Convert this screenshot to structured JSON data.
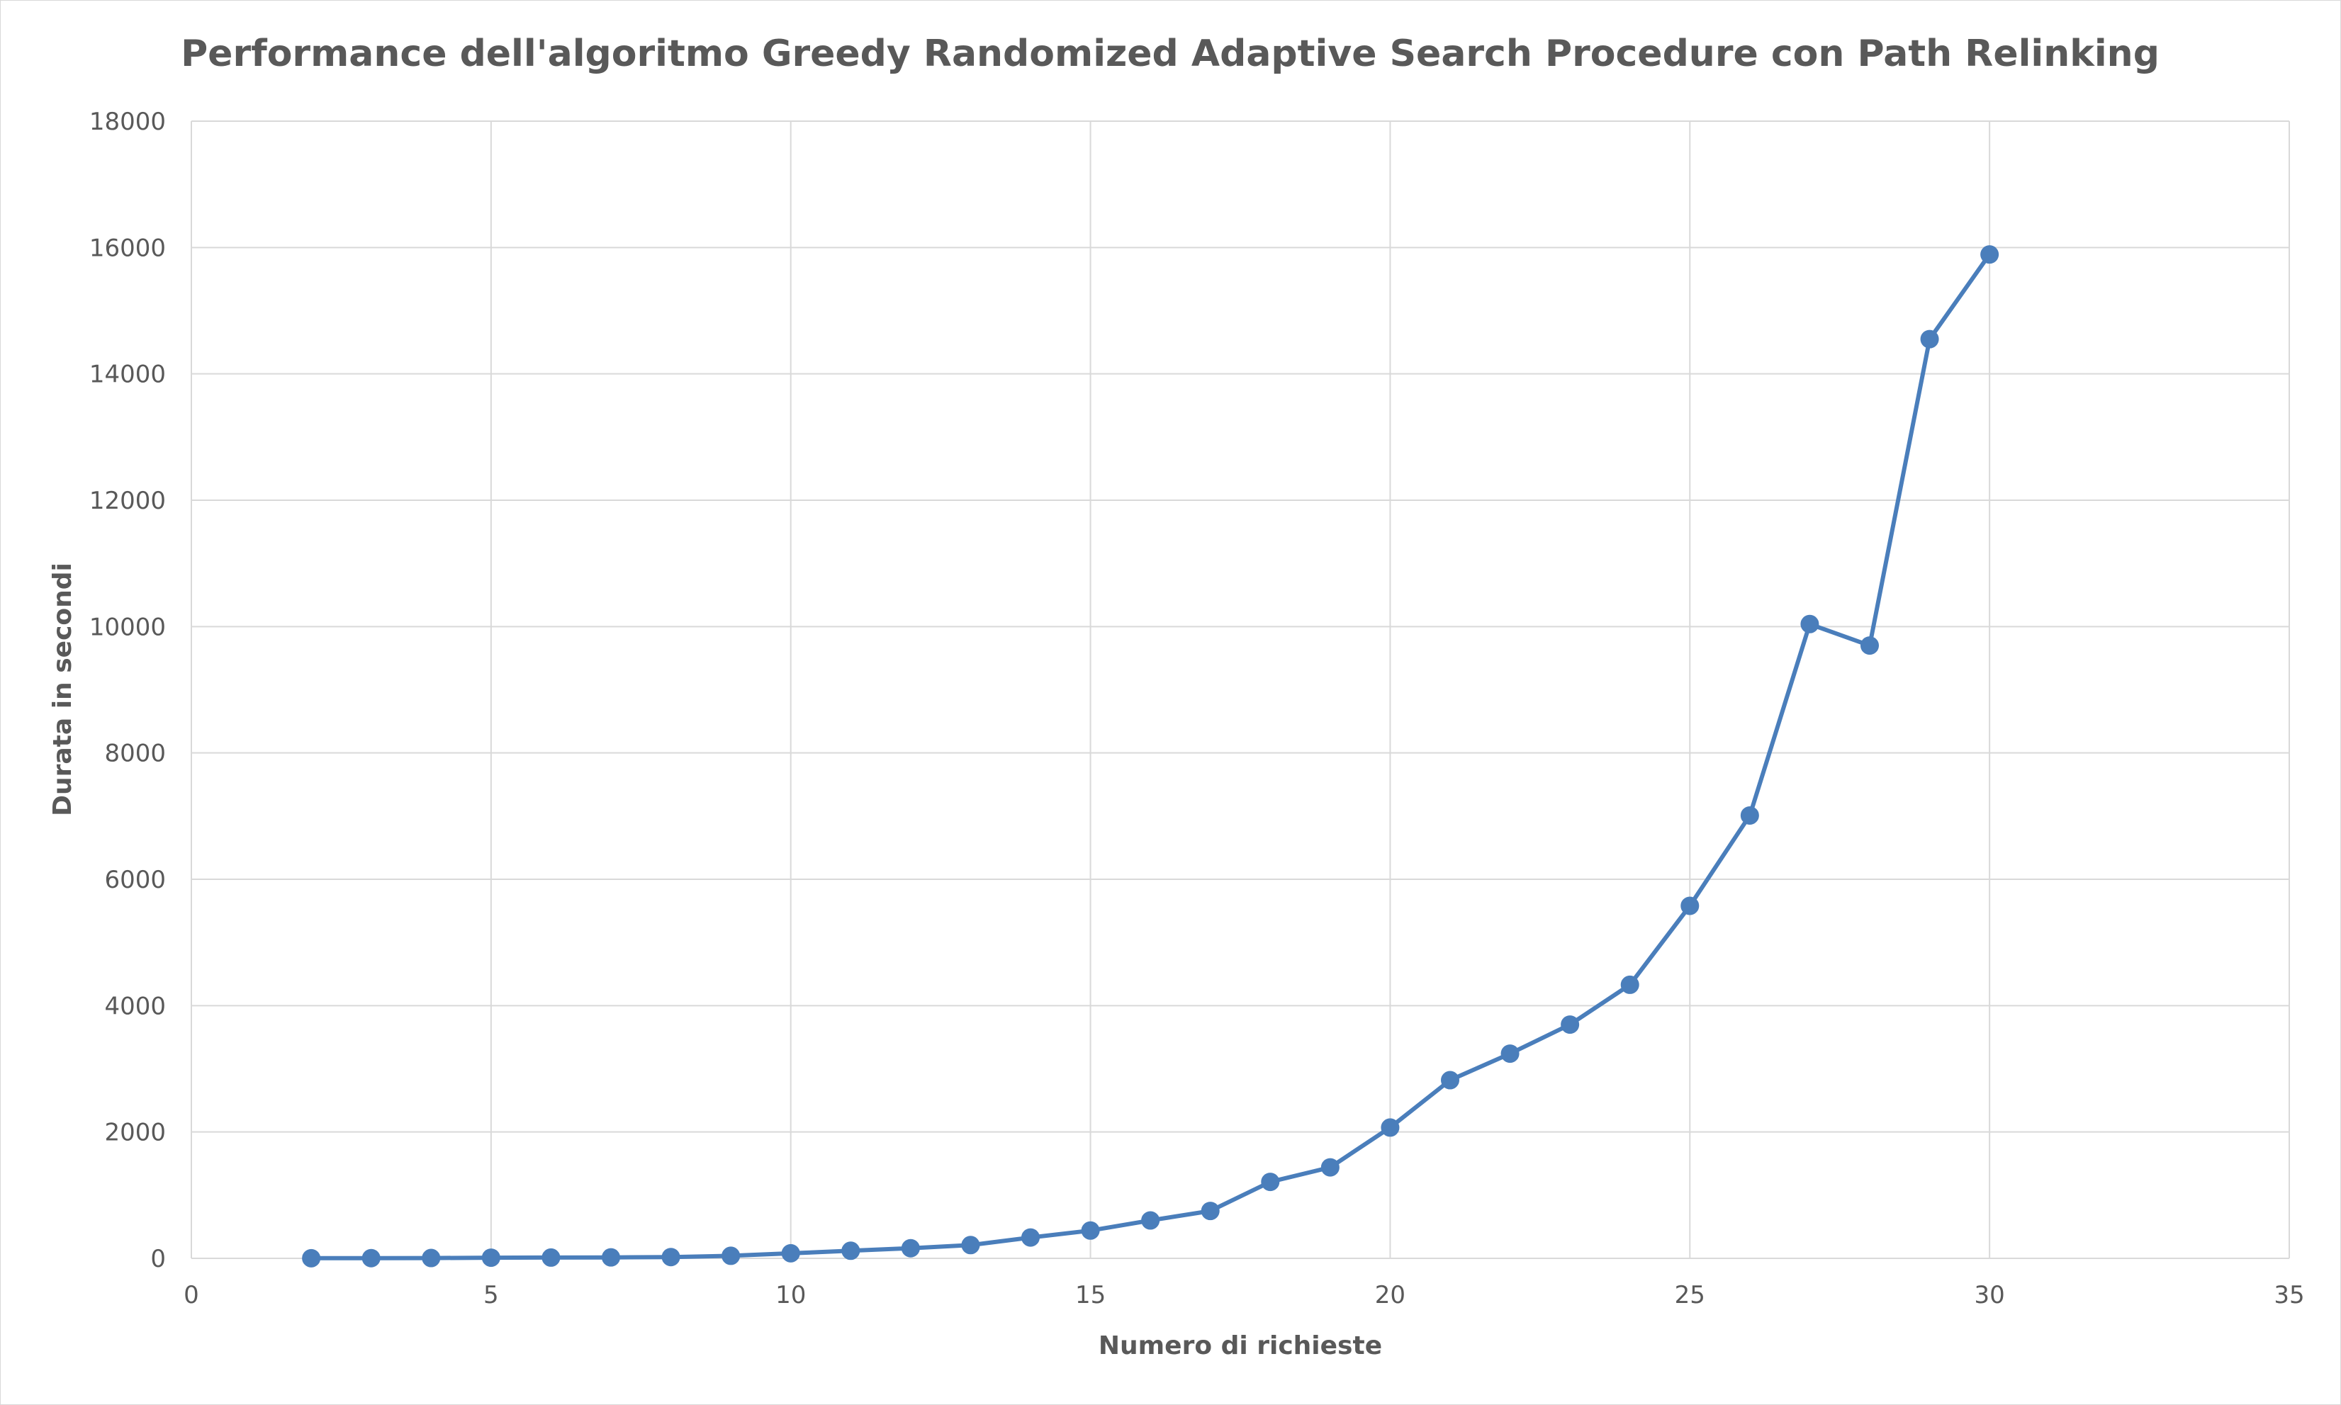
{
  "chart_data": {
    "type": "scatter",
    "title": "Performance dell'algoritmo Greedy Randomized Adaptive Search Procedure con Path Relinking",
    "xlabel": "Numero di richieste",
    "ylabel": "Durata in secondi",
    "xlim": [
      0,
      35
    ],
    "ylim": [
      0,
      18000
    ],
    "x_ticks": [
      0,
      5,
      10,
      15,
      20,
      25,
      30,
      35
    ],
    "y_ticks": [
      0,
      2000,
      4000,
      6000,
      8000,
      10000,
      12000,
      14000,
      16000,
      18000
    ],
    "grid": true,
    "legend": "none",
    "lines": true,
    "markers": true,
    "series": [
      {
        "color": "#4a7ebb",
        "x": [
          2,
          3,
          4,
          5,
          6,
          7,
          8,
          9,
          10,
          11,
          12,
          13,
          14,
          15,
          16,
          17,
          18,
          19,
          20,
          21,
          22,
          23,
          24,
          25,
          26,
          27,
          28,
          29,
          30
        ],
        "y": [
          2,
          3,
          5,
          10,
          12,
          15,
          20,
          40,
          80,
          120,
          160,
          210,
          330,
          440,
          600,
          750,
          1210,
          1440,
          2070,
          2820,
          3240,
          3700,
          4330,
          5580,
          7010,
          10040,
          9700,
          14550,
          15890
        ]
      }
    ],
    "colors": {
      "gridline": "#d9d9d9",
      "text": "#595959",
      "series": "#4a7ebb"
    }
  }
}
